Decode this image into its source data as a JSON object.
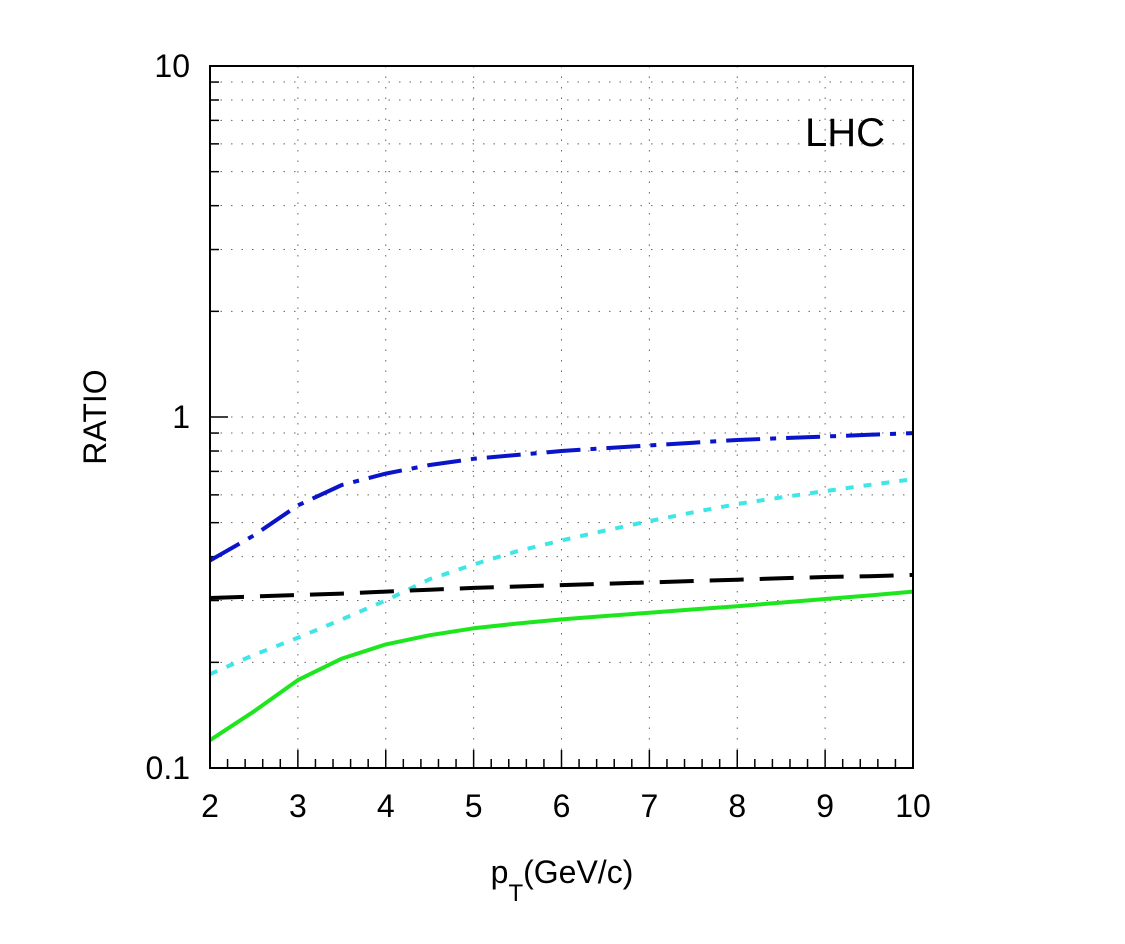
{
  "chart_data": {
    "type": "line",
    "title": "",
    "xlabel": "p_T(GeV/c)",
    "xlabel_parts": {
      "main": "p",
      "sub": "T",
      "rest": "(GeV/c)"
    },
    "ylabel": "RATIO",
    "annotation": "LHC",
    "xlim": [
      2,
      10
    ],
    "ylim": [
      0.1,
      10
    ],
    "yscale": "log",
    "grid": true,
    "x_ticks": [
      2,
      3,
      4,
      5,
      6,
      7,
      8,
      9,
      10
    ],
    "x_tick_labels": [
      "2",
      "3",
      "4",
      "5",
      "6",
      "7",
      "8",
      "9",
      "10"
    ],
    "y_ticks": [
      0.1,
      1,
      10
    ],
    "y_tick_labels": [
      "0.1",
      "1",
      "10"
    ],
    "series": [
      {
        "color": "#0a14c8",
        "style": "dash-dot",
        "x": [
          2,
          2.5,
          3,
          3.5,
          4,
          4.5,
          5,
          5.5,
          6,
          6.5,
          7,
          7.5,
          8,
          8.5,
          9,
          9.5,
          10
        ],
        "y": [
          0.39,
          0.46,
          0.56,
          0.64,
          0.69,
          0.73,
          0.76,
          0.78,
          0.8,
          0.815,
          0.83,
          0.845,
          0.86,
          0.87,
          0.88,
          0.89,
          0.9
        ]
      },
      {
        "color": "#3ee6e6",
        "style": "dotted",
        "x": [
          2,
          2.5,
          3,
          3.5,
          4,
          4.5,
          5,
          5.5,
          6,
          6.5,
          7,
          7.5,
          8,
          8.5,
          9,
          9.5,
          10
        ],
        "y": [
          0.185,
          0.21,
          0.235,
          0.265,
          0.3,
          0.345,
          0.38,
          0.415,
          0.445,
          0.475,
          0.505,
          0.535,
          0.565,
          0.59,
          0.615,
          0.64,
          0.665
        ]
      },
      {
        "color": "#000000",
        "style": "dashed",
        "x": [
          2,
          2.5,
          3,
          3.5,
          4,
          4.5,
          5,
          5.5,
          6,
          6.5,
          7,
          7.5,
          8,
          8.5,
          9,
          9.5,
          10
        ],
        "y": [
          0.305,
          0.308,
          0.311,
          0.314,
          0.318,
          0.322,
          0.326,
          0.329,
          0.332,
          0.335,
          0.338,
          0.341,
          0.344,
          0.347,
          0.35,
          0.352,
          0.355
        ]
      },
      {
        "color": "#1ee61e",
        "style": "solid",
        "x": [
          2,
          2.5,
          3,
          3.5,
          4,
          4.5,
          5,
          5.5,
          6,
          6.5,
          7,
          7.5,
          8,
          8.5,
          9,
          9.5,
          10
        ],
        "y": [
          0.12,
          0.145,
          0.178,
          0.205,
          0.225,
          0.239,
          0.25,
          0.258,
          0.265,
          0.271,
          0.277,
          0.283,
          0.289,
          0.296,
          0.303,
          0.31,
          0.318
        ]
      }
    ]
  }
}
